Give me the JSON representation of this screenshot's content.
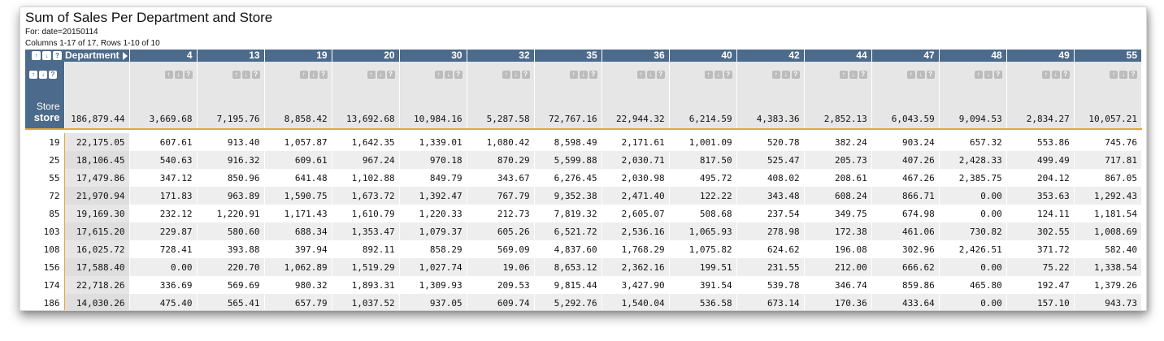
{
  "title": "Sum of Sales Per Department and Store",
  "for_line": "For: date=20150114",
  "range_line": "Columns 1-17 of 17,  Rows 1-10 of 10",
  "header": {
    "row_label": "Department",
    "departments": [
      "4",
      "13",
      "19",
      "20",
      "30",
      "32",
      "35",
      "36",
      "40",
      "42",
      "44",
      "47",
      "48",
      "49",
      "55"
    ]
  },
  "store_header": {
    "line1": "Store",
    "line2": "store"
  },
  "totals": {
    "all": "186,879.44",
    "departments": [
      "3,669.68",
      "7,195.76",
      "8,858.42",
      "13,692.68",
      "10,984.16",
      "5,287.58",
      "72,767.16",
      "22,944.32",
      "6,214.59",
      "4,383.36",
      "2,852.13",
      "6,043.59",
      "9,094.53",
      "2,834.27",
      "10,057.21"
    ]
  },
  "icons": {
    "up": "arrow-up-icon",
    "down": "arrow-down-icon",
    "help": "question-icon",
    "expand": "triangle-right-icon"
  },
  "colors": {
    "header_bg": "#4c6b8c",
    "accent": "#e8a33b"
  },
  "rows": [
    {
      "store": "19",
      "all": "22,175.05",
      "values": [
        "607.61",
        "913.40",
        "1,057.87",
        "1,642.35",
        "1,339.01",
        "1,080.42",
        "8,598.49",
        "2,171.61",
        "1,001.09",
        "520.78",
        "382.24",
        "903.24",
        "657.32",
        "553.86",
        "745.76"
      ]
    },
    {
      "store": "25",
      "all": "18,106.45",
      "values": [
        "540.63",
        "916.32",
        "609.61",
        "967.24",
        "970.18",
        "870.29",
        "5,599.88",
        "2,030.71",
        "817.50",
        "525.47",
        "205.73",
        "407.26",
        "2,428.33",
        "499.49",
        "717.81"
      ]
    },
    {
      "store": "55",
      "all": "17,479.86",
      "values": [
        "347.12",
        "850.96",
        "641.48",
        "1,102.88",
        "849.79",
        "343.67",
        "6,276.45",
        "2,030.98",
        "495.72",
        "408.02",
        "208.61",
        "467.26",
        "2,385.75",
        "204.12",
        "867.05"
      ]
    },
    {
      "store": "72",
      "all": "21,970.94",
      "values": [
        "171.83",
        "963.89",
        "1,590.75",
        "1,673.72",
        "1,392.47",
        "767.79",
        "9,352.38",
        "2,471.40",
        "122.22",
        "343.48",
        "608.24",
        "866.71",
        "0.00",
        "353.63",
        "1,292.43"
      ]
    },
    {
      "store": "85",
      "all": "19,169.30",
      "values": [
        "232.12",
        "1,220.91",
        "1,171.43",
        "1,610.79",
        "1,220.33",
        "212.73",
        "7,819.32",
        "2,605.07",
        "508.68",
        "237.54",
        "349.75",
        "674.98",
        "0.00",
        "124.11",
        "1,181.54"
      ]
    },
    {
      "store": "103",
      "all": "17,615.20",
      "values": [
        "229.87",
        "580.60",
        "688.34",
        "1,353.47",
        "1,079.37",
        "605.26",
        "6,521.72",
        "2,536.16",
        "1,065.93",
        "278.98",
        "172.38",
        "461.06",
        "730.82",
        "302.55",
        "1,008.69"
      ]
    },
    {
      "store": "108",
      "all": "16,025.72",
      "values": [
        "728.41",
        "393.88",
        "397.94",
        "892.11",
        "858.29",
        "569.09",
        "4,837.60",
        "1,768.29",
        "1,075.82",
        "624.62",
        "196.08",
        "302.96",
        "2,426.51",
        "371.72",
        "582.40"
      ]
    },
    {
      "store": "156",
      "all": "17,588.40",
      "values": [
        "0.00",
        "220.70",
        "1,062.89",
        "1,519.29",
        "1,027.74",
        "19.06",
        "8,653.12",
        "2,362.16",
        "199.51",
        "231.55",
        "212.00",
        "666.62",
        "0.00",
        "75.22",
        "1,338.54"
      ]
    },
    {
      "store": "174",
      "all": "22,718.26",
      "values": [
        "336.69",
        "569.69",
        "980.32",
        "1,893.31",
        "1,309.93",
        "209.53",
        "9,815.44",
        "3,427.90",
        "391.54",
        "539.78",
        "346.74",
        "859.86",
        "465.80",
        "192.47",
        "1,379.26"
      ]
    },
    {
      "store": "186",
      "all": "14,030.26",
      "values": [
        "475.40",
        "565.41",
        "657.79",
        "1,037.52",
        "937.05",
        "609.74",
        "5,292.76",
        "1,540.04",
        "536.58",
        "673.14",
        "170.36",
        "433.64",
        "0.00",
        "157.10",
        "943.73"
      ]
    }
  ]
}
